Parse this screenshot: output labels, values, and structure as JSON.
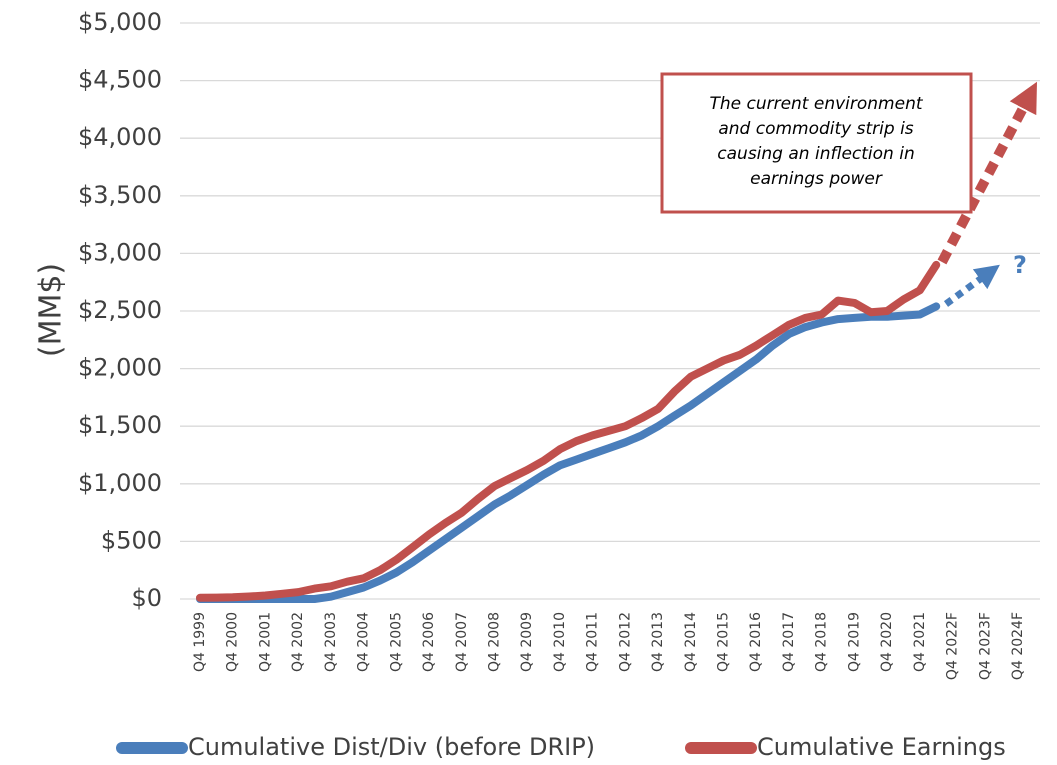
{
  "chart_data": {
    "type": "line",
    "y_label": "(MM$)",
    "categories": [
      "Q4 1999",
      null,
      "Q4 2000",
      null,
      "Q4 2001",
      null,
      "Q4 2002",
      null,
      "Q4 2003",
      null,
      "Q4 2004",
      null,
      "Q4 2005",
      null,
      "Q4 2006",
      null,
      "Q4 2007",
      null,
      "Q4 2008",
      null,
      "Q4 2009",
      null,
      "Q4 2010",
      null,
      "Q4 2011",
      null,
      "Q4 2012",
      null,
      "Q4 2013",
      null,
      "Q4 2014",
      null,
      "Q4 2015",
      null,
      "Q4 2016",
      null,
      "Q4 2017",
      null,
      "Q4 2018",
      null,
      "Q4 2019",
      null,
      "Q4 2020",
      null,
      "Q4 2021",
      null,
      "Q4 2022F",
      null,
      "Q4 2023F",
      null,
      "Q4 2024F"
    ],
    "series": [
      {
        "name": "Cumulative Dist/Div (before DRIP)",
        "color": "#4a7ebb",
        "values": [
          0,
          0,
          0,
          0,
          0,
          0,
          0,
          0,
          20,
          60,
          100,
          160,
          230,
          320,
          420,
          520,
          620,
          720,
          820,
          900,
          990,
          1080,
          1160,
          1210,
          1260,
          1310,
          1360,
          1420,
          1500,
          1590,
          1680,
          1780,
          1880,
          1980,
          2080,
          2200,
          2300,
          2360,
          2400,
          2430,
          2440,
          2450,
          2450,
          2460,
          2470,
          2540,
          null,
          null,
          null,
          null,
          null
        ]
      },
      {
        "name": "Cumulative Earnings",
        "color": "#c0504d",
        "values": [
          10,
          12,
          15,
          22,
          30,
          45,
          60,
          90,
          110,
          150,
          180,
          250,
          340,
          450,
          560,
          660,
          750,
          870,
          980,
          1050,
          1120,
          1200,
          1300,
          1370,
          1420,
          1460,
          1500,
          1570,
          1650,
          1800,
          1930,
          2000,
          2070,
          2120,
          2200,
          2290,
          2380,
          2440,
          2470,
          2590,
          2570,
          2490,
          2500,
          2600,
          2680,
          2900,
          null,
          null,
          null,
          null,
          null
        ]
      }
    ],
    "ylim": [
      0,
      5000
    ],
    "yticks": [
      {
        "value": 0,
        "label": "$0"
      },
      {
        "value": 500,
        "label": "$500"
      },
      {
        "value": 1000,
        "label": "$1,000"
      },
      {
        "value": 1500,
        "label": "$1,500"
      },
      {
        "value": 2000,
        "label": "$2,000"
      },
      {
        "value": 2500,
        "label": "$2,500"
      },
      {
        "value": 3000,
        "label": "$3,000"
      },
      {
        "value": 3500,
        "label": "$3,500"
      },
      {
        "value": 4000,
        "label": "$4,000"
      },
      {
        "value": 4500,
        "label": "$4,500"
      },
      {
        "value": 5000,
        "label": "$5,000"
      }
    ],
    "grid": true,
    "legend": "bottom",
    "annotations": {
      "box": [
        "The current environment",
        "and commodity strip is",
        "causing an inflection in",
        "earnings power"
      ],
      "question": "?"
    }
  }
}
